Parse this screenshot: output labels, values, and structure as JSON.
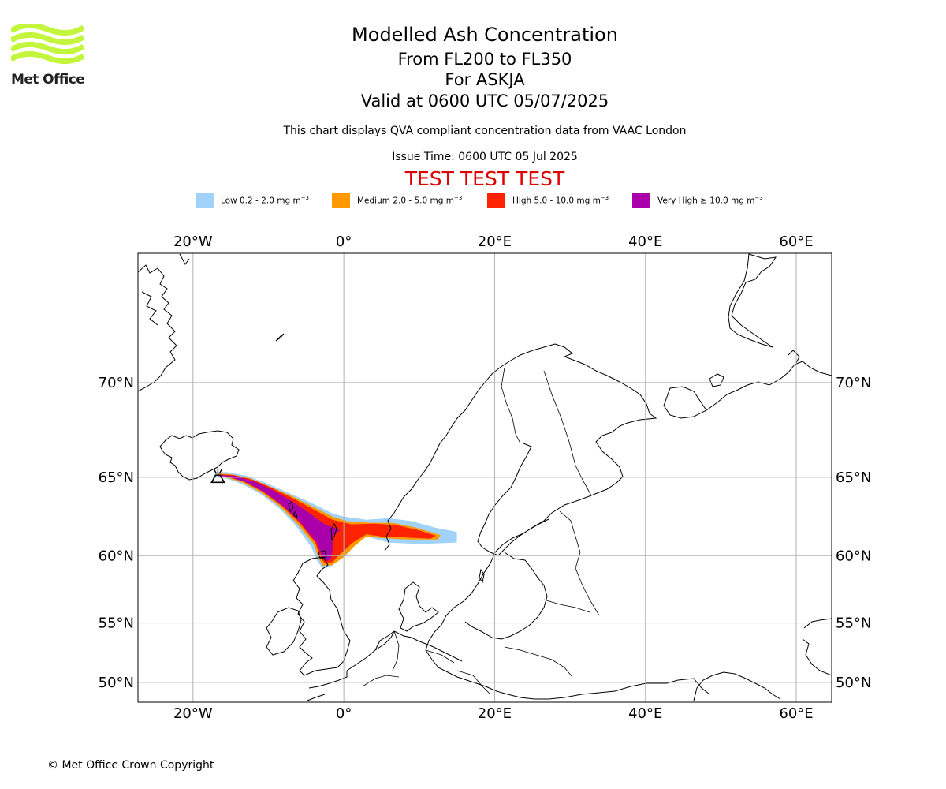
{
  "logo": {
    "text": "Met Office",
    "color": "#c3f53c"
  },
  "title": {
    "main": "Modelled Ash Concentration",
    "levels": "From FL200 to FL350",
    "volcano": "For ASKJA",
    "valid": "Valid at 0600 UTC 05/07/2025"
  },
  "subtitle": "This chart displays QVA compliant concentration data from VAAC London",
  "issue_time": "Issue Time: 0600 UTC 05 Jul 2025",
  "banner": {
    "text": "TEST TEST TEST",
    "color": "#dd0000"
  },
  "legend": [
    {
      "label": "Low 0.2 - 2.0 mg m",
      "unit_sup": "−3",
      "color": "#a0d2fa"
    },
    {
      "label": "Medium 2.0 - 5.0 mg m",
      "unit_sup": "−3",
      "color": "#ff9900"
    },
    {
      "label": "High 5.0 - 10.0 mg m",
      "unit_sup": "−3",
      "color": "#ff2200"
    },
    {
      "label": "Very High  ≥  10.0 mg m",
      "unit_sup": "−3",
      "color": "#aa00aa"
    }
  ],
  "map": {
    "projection": "mercator",
    "lon_range": [
      -27.3,
      64.7
    ],
    "lat_range": [
      48.2,
      75.3
    ],
    "gridlines": true,
    "lon_ticks": [
      {
        "value": -20,
        "label": "20°W"
      },
      {
        "value": 0,
        "label": "0°"
      },
      {
        "value": 20,
        "label": "20°E"
      },
      {
        "value": 40,
        "label": "40°E"
      },
      {
        "value": 60,
        "label": "60°E"
      }
    ],
    "lat_ticks": [
      {
        "value": 50,
        "label": "50°N"
      },
      {
        "value": 55,
        "label": "55°N"
      },
      {
        "value": 60,
        "label": "60°N"
      },
      {
        "value": 65,
        "label": "65°N"
      },
      {
        "value": 70,
        "label": "70°N"
      }
    ],
    "volcano_icon": "volcano-icon",
    "volcano_position": {
      "lon": -16.7,
      "lat": 65.03
    },
    "ash_layers": [
      {
        "level": "Low",
        "color": "#a0d2fa",
        "points": [
          [
            -17,
            65.3
          ],
          [
            -15.5,
            65.3
          ],
          [
            -13,
            65.1
          ],
          [
            -10.5,
            64.7
          ],
          [
            -8,
            64.2
          ],
          [
            -4.5,
            63.5
          ],
          [
            -1.5,
            62.8
          ],
          [
            0,
            62.6
          ],
          [
            3,
            62.4
          ],
          [
            6,
            62.5
          ],
          [
            9,
            62.3
          ],
          [
            12,
            61.9
          ],
          [
            15,
            61.6
          ],
          [
            15,
            60.9
          ],
          [
            10,
            60.8
          ],
          [
            6,
            60.9
          ],
          [
            3,
            61.3
          ],
          [
            1.5,
            60.9
          ],
          [
            0,
            60.1
          ],
          [
            -1.5,
            59.3
          ],
          [
            -2.8,
            59.1
          ],
          [
            -3.5,
            59.6
          ],
          [
            -4.3,
            60.6
          ],
          [
            -6.5,
            62.1
          ],
          [
            -8.5,
            63.1
          ],
          [
            -11,
            64.0
          ],
          [
            -13.5,
            64.6
          ],
          [
            -16,
            65.0
          ],
          [
            -17.2,
            65.1
          ]
        ]
      },
      {
        "level": "Medium",
        "color": "#ff9900",
        "points": [
          [
            -16.8,
            65.22
          ],
          [
            -15,
            65.18
          ],
          [
            -12.5,
            64.95
          ],
          [
            -10,
            64.5
          ],
          [
            -7,
            63.9
          ],
          [
            -4,
            63.2
          ],
          [
            -1.5,
            62.6
          ],
          [
            0.5,
            62.3
          ],
          [
            3.5,
            62.2
          ],
          [
            6.5,
            62.2
          ],
          [
            9.5,
            61.9
          ],
          [
            12.8,
            61.4
          ],
          [
            12.5,
            61.1
          ],
          [
            8.5,
            61.1
          ],
          [
            5,
            61.2
          ],
          [
            3,
            61.3
          ],
          [
            1.5,
            60.7
          ],
          [
            0,
            59.9
          ],
          [
            -1.5,
            59.35
          ],
          [
            -2.8,
            59.3
          ],
          [
            -3.3,
            59.8
          ],
          [
            -4,
            60.8
          ],
          [
            -6.3,
            62.2
          ],
          [
            -8.5,
            63.25
          ],
          [
            -11,
            64.1
          ],
          [
            -13.5,
            64.7
          ],
          [
            -16,
            65.05
          ],
          [
            -16.9,
            65.1
          ]
        ]
      },
      {
        "level": "High",
        "color": "#ff2200",
        "points": [
          [
            -16.7,
            65.18
          ],
          [
            -14.5,
            65.12
          ],
          [
            -12,
            64.85
          ],
          [
            -9.5,
            64.35
          ],
          [
            -7,
            63.8
          ],
          [
            -4,
            63.05
          ],
          [
            -1.5,
            62.4
          ],
          [
            1,
            62.1
          ],
          [
            4,
            62.15
          ],
          [
            7,
            62.05
          ],
          [
            10,
            61.7
          ],
          [
            12.2,
            61.35
          ],
          [
            11.5,
            61.15
          ],
          [
            8,
            61.25
          ],
          [
            5,
            61.3
          ],
          [
            3,
            61.45
          ],
          [
            1.2,
            60.9
          ],
          [
            -0.5,
            60.1
          ],
          [
            -1.5,
            59.55
          ],
          [
            -2.5,
            59.45
          ],
          [
            -3.1,
            59.9
          ],
          [
            -3.8,
            60.9
          ],
          [
            -6,
            62.25
          ],
          [
            -8.3,
            63.3
          ],
          [
            -10.8,
            64.15
          ],
          [
            -13.3,
            64.75
          ],
          [
            -15.8,
            65.08
          ],
          [
            -16.8,
            65.12
          ]
        ]
      },
      {
        "level": "Very High",
        "color": "#aa00aa",
        "points": [
          [
            -16.6,
            65.15
          ],
          [
            -14.5,
            65.08
          ],
          [
            -12,
            64.78
          ],
          [
            -9.5,
            64.25
          ],
          [
            -7,
            63.6
          ],
          [
            -4.5,
            62.8
          ],
          [
            -2.5,
            62.1
          ],
          [
            -0.5,
            61.75
          ],
          [
            -1.5,
            61.3
          ],
          [
            -1.5,
            60.4
          ],
          [
            -1.7,
            59.75
          ],
          [
            -2.4,
            59.6
          ],
          [
            -2.9,
            59.95
          ],
          [
            -3.6,
            60.9
          ],
          [
            -5.8,
            62.25
          ],
          [
            -8,
            63.25
          ],
          [
            -10.5,
            64.1
          ],
          [
            -13,
            64.72
          ],
          [
            -15.6,
            65.05
          ],
          [
            -16.7,
            65.08
          ]
        ]
      }
    ]
  },
  "copyright": "© Met Office Crown Copyright"
}
